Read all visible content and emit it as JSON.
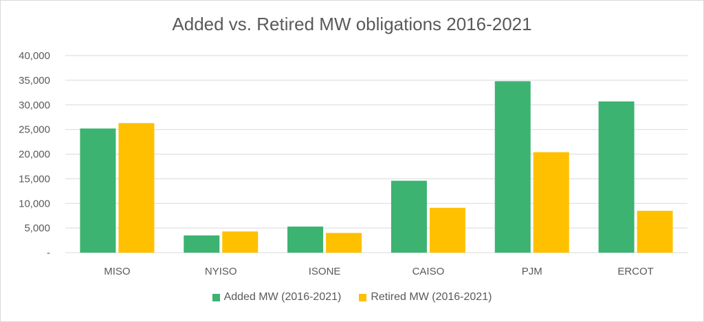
{
  "chart_data": {
    "type": "bar",
    "title": "Added vs. Retired MW obligations 2016-2021",
    "xlabel": "",
    "ylabel": "",
    "categories": [
      "MISO",
      "NYISO",
      "ISONE",
      "CAISO",
      "PJM",
      "ERCOT"
    ],
    "series": [
      {
        "name": "Added MW (2016-2021)",
        "color": "#3cb371",
        "values": [
          25200,
          3500,
          5300,
          14600,
          34800,
          30700
        ]
      },
      {
        "name": "Retired MW (2016-2021)",
        "color": "#ffc000",
        "values": [
          26300,
          4300,
          4000,
          9100,
          20400,
          8500
        ]
      }
    ],
    "ylim": [
      0,
      40000
    ],
    "yticks": [
      0,
      5000,
      10000,
      15000,
      20000,
      25000,
      30000,
      35000,
      40000
    ],
    "ytick_labels": [
      "-",
      "5,000",
      "10,000",
      "15,000",
      "20,000",
      "25,000",
      "30,000",
      "35,000",
      "40,000"
    ],
    "grid": true,
    "legend": "bottom"
  }
}
